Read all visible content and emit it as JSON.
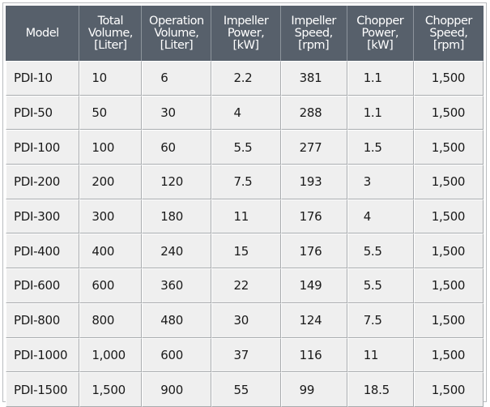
{
  "table": {
    "headers": [
      {
        "key": "model",
        "lines": [
          "Model"
        ]
      },
      {
        "key": "total_volume",
        "lines": [
          "Total",
          "Volume,",
          "[Liter]"
        ]
      },
      {
        "key": "operation_volume",
        "lines": [
          "Operation",
          "Volume,",
          "[Liter]"
        ]
      },
      {
        "key": "impeller_power",
        "lines": [
          "Impeller",
          "Power,",
          "[kW]"
        ]
      },
      {
        "key": "impeller_speed",
        "lines": [
          "Impeller",
          "Speed,",
          "[rpm]"
        ]
      },
      {
        "key": "chopper_power",
        "lines": [
          "Chopper",
          "Power,",
          "[kW]"
        ]
      },
      {
        "key": "chopper_speed",
        "lines": [
          "Chopper",
          "Speed,",
          "[rpm]"
        ]
      }
    ],
    "rows": [
      [
        "PDI-10",
        "10",
        "6",
        "2.2",
        "381",
        "1.1",
        "1,500"
      ],
      [
        "PDI-50",
        "50",
        "30",
        "4",
        "288",
        "1.1",
        "1,500"
      ],
      [
        "PDI-100",
        "100",
        "60",
        "5.5",
        "277",
        "1.5",
        "1,500"
      ],
      [
        "PDI-200",
        "200",
        "120",
        "7.5",
        "193",
        "3",
        "1,500"
      ],
      [
        "PDI-300",
        "300",
        "180",
        "11",
        "176",
        "4",
        "1,500"
      ],
      [
        "PDI-400",
        "400",
        "240",
        "15",
        "176",
        "5.5",
        "1,500"
      ],
      [
        "PDI-600",
        "600",
        "360",
        "22",
        "149",
        "5.5",
        "1,500"
      ],
      [
        "PDI-800",
        "800",
        "480",
        "30",
        "124",
        "7.5",
        "1,500"
      ],
      [
        "PDI-1000",
        "1,000",
        "600",
        "37",
        "116",
        "11",
        "1,500"
      ],
      [
        "PDI-1500",
        "1,500",
        "900",
        "55",
        "99",
        "18.5",
        "1,500"
      ]
    ]
  }
}
